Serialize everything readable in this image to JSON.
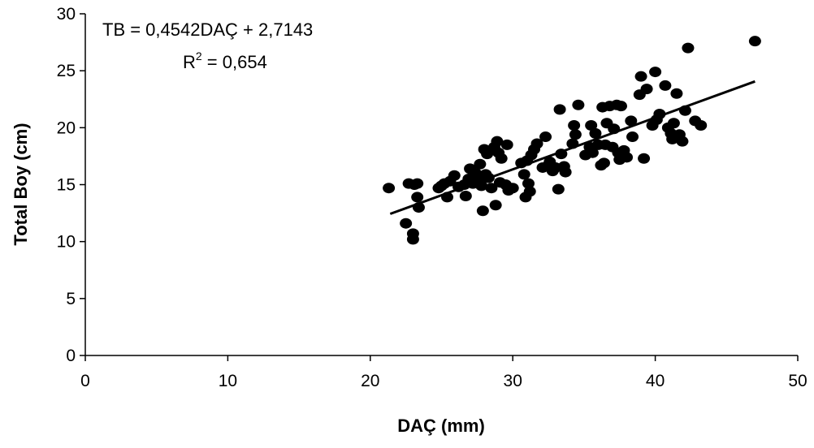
{
  "chart_data": {
    "type": "scatter",
    "title": "",
    "xlabel": "DAÇ (mm)",
    "ylabel": "Total Boy (cm)",
    "xlim": [
      0,
      50
    ],
    "ylim": [
      0,
      30
    ],
    "xticks": [
      0,
      10,
      20,
      30,
      40,
      50
    ],
    "yticks": [
      0,
      5,
      10,
      15,
      20,
      25,
      30
    ],
    "grid": false,
    "marker_color": "#000000",
    "trendline": {
      "slope": 0.4542,
      "intercept": 2.7143,
      "x_range": [
        21.4,
        47.0
      ]
    },
    "annotations": {
      "equation": "TB = 0,4542DAÇ + 2,7143",
      "r_squared_prefix": "R",
      "r_squared_sup": "2",
      "r_squared_value": " = 0,654"
    },
    "points": [
      [
        21.3,
        14.7
      ],
      [
        22.5,
        11.6
      ],
      [
        22.7,
        15.1
      ],
      [
        23.0,
        10.7
      ],
      [
        23.0,
        10.2
      ],
      [
        23.1,
        15.0
      ],
      [
        23.3,
        15.1
      ],
      [
        23.3,
        13.9
      ],
      [
        23.4,
        13.0
      ],
      [
        24.8,
        14.7
      ],
      [
        25.0,
        14.9
      ],
      [
        25.2,
        15.1
      ],
      [
        25.4,
        13.9
      ],
      [
        25.6,
        15.3
      ],
      [
        25.9,
        15.8
      ],
      [
        26.2,
        14.8
      ],
      [
        26.6,
        15.0
      ],
      [
        26.7,
        14.0
      ],
      [
        26.9,
        15.5
      ],
      [
        27.0,
        16.4
      ],
      [
        27.2,
        15.1
      ],
      [
        27.4,
        16.0
      ],
      [
        27.5,
        15.5
      ],
      [
        27.7,
        16.8
      ],
      [
        27.8,
        14.9
      ],
      [
        27.9,
        12.7
      ],
      [
        28.0,
        18.1
      ],
      [
        28.1,
        15.9
      ],
      [
        28.2,
        17.7
      ],
      [
        28.3,
        15.6
      ],
      [
        28.5,
        14.7
      ],
      [
        28.7,
        18.3
      ],
      [
        28.8,
        13.2
      ],
      [
        28.9,
        18.8
      ],
      [
        29.0,
        17.8
      ],
      [
        29.1,
        15.2
      ],
      [
        29.2,
        17.3
      ],
      [
        29.5,
        15.0
      ],
      [
        29.6,
        18.5
      ],
      [
        29.7,
        14.5
      ],
      [
        30.0,
        14.7
      ],
      [
        30.6,
        16.9
      ],
      [
        30.8,
        15.9
      ],
      [
        30.9,
        13.9
      ],
      [
        31.0,
        17.1
      ],
      [
        31.1,
        15.1
      ],
      [
        31.2,
        14.4
      ],
      [
        31.3,
        17.6
      ],
      [
        31.5,
        18.1
      ],
      [
        31.7,
        18.6
      ],
      [
        32.1,
        16.5
      ],
      [
        32.3,
        19.2
      ],
      [
        32.4,
        16.6
      ],
      [
        32.6,
        17.0
      ],
      [
        32.8,
        16.2
      ],
      [
        33.0,
        16.5
      ],
      [
        33.2,
        14.6
      ],
      [
        33.3,
        21.6
      ],
      [
        33.4,
        17.7
      ],
      [
        33.6,
        16.6
      ],
      [
        33.7,
        16.1
      ],
      [
        34.2,
        18.6
      ],
      [
        34.3,
        20.2
      ],
      [
        34.4,
        19.4
      ],
      [
        34.6,
        22.0
      ],
      [
        35.1,
        17.6
      ],
      [
        35.4,
        18.3
      ],
      [
        35.5,
        20.2
      ],
      [
        35.6,
        17.8
      ],
      [
        35.8,
        19.5
      ],
      [
        36.0,
        18.5
      ],
      [
        36.2,
        16.7
      ],
      [
        36.3,
        21.8
      ],
      [
        36.4,
        16.9
      ],
      [
        36.5,
        18.5
      ],
      [
        36.6,
        20.4
      ],
      [
        36.8,
        21.9
      ],
      [
        37.0,
        18.3
      ],
      [
        37.1,
        19.9
      ],
      [
        37.3,
        22.0
      ],
      [
        37.4,
        17.8
      ],
      [
        37.5,
        17.2
      ],
      [
        37.6,
        21.9
      ],
      [
        37.8,
        18.0
      ],
      [
        38.0,
        17.4
      ],
      [
        38.3,
        20.6
      ],
      [
        38.4,
        19.2
      ],
      [
        38.9,
        22.9
      ],
      [
        39.0,
        24.5
      ],
      [
        39.2,
        17.3
      ],
      [
        39.4,
        23.4
      ],
      [
        39.8,
        20.2
      ],
      [
        40.0,
        24.9
      ],
      [
        40.1,
        20.7
      ],
      [
        40.3,
        21.2
      ],
      [
        40.7,
        23.7
      ],
      [
        40.9,
        20.0
      ],
      [
        41.1,
        19.5
      ],
      [
        41.2,
        19.0
      ],
      [
        41.3,
        20.4
      ],
      [
        41.5,
        23.0
      ],
      [
        41.7,
        19.4
      ],
      [
        41.9,
        18.8
      ],
      [
        42.1,
        21.5
      ],
      [
        42.3,
        27.0
      ],
      [
        42.8,
        20.6
      ],
      [
        43.2,
        20.2
      ],
      [
        47.0,
        27.6
      ]
    ]
  }
}
